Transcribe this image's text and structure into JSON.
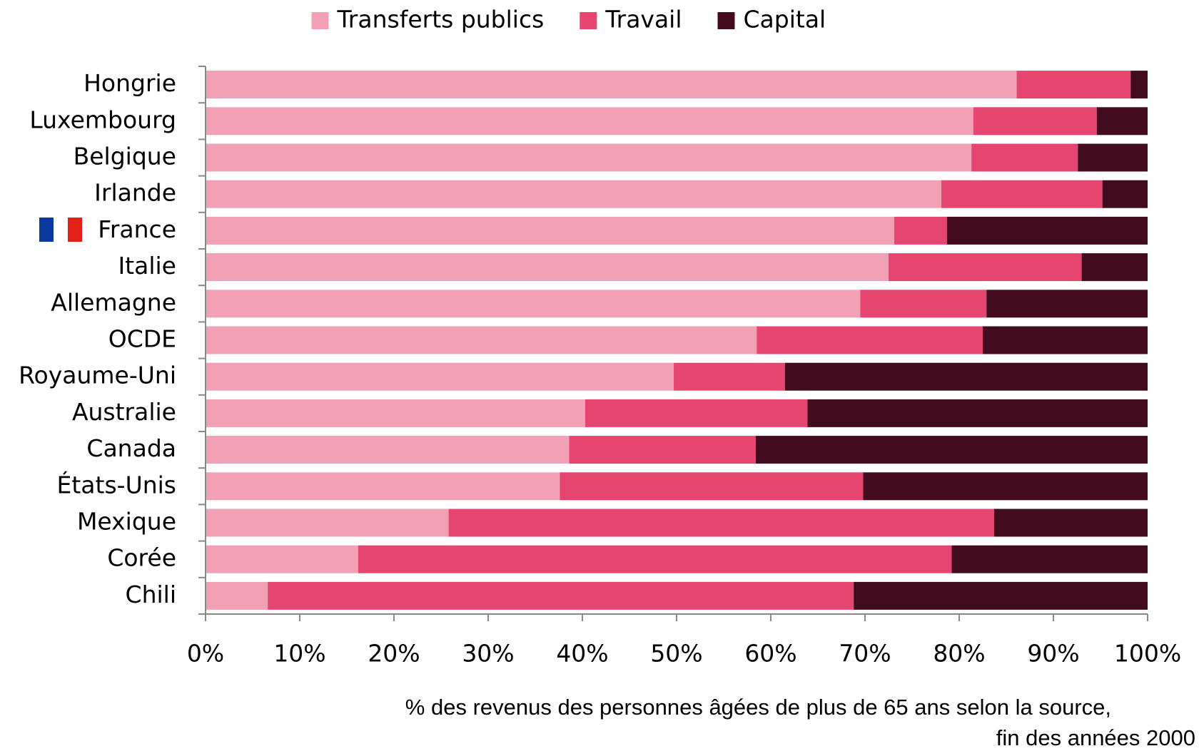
{
  "chart_data": {
    "type": "stacked-barh",
    "categories": [
      "Hongrie",
      "Luxembourg",
      "Belgique",
      "Irlande",
      "France",
      "Italie",
      "Allemagne",
      "OCDE",
      "Royaume-Uni",
      "Australie",
      "Canada",
      "États-Unis",
      "Mexique",
      "Corée",
      "Chili"
    ],
    "series": [
      {
        "name": "Transferts publics",
        "color": "#f2a0b5",
        "values": [
          86.1,
          81.5,
          81.3,
          78.1,
          73.1,
          72.5,
          69.5,
          58.5,
          49.7,
          40.3,
          38.6,
          37.6,
          25.8,
          16.2,
          6.6
        ]
      },
      {
        "name": "Travail",
        "color": "#e64570",
        "values": [
          12.1,
          13.1,
          11.3,
          17.1,
          5.6,
          20.5,
          13.4,
          24.0,
          11.8,
          23.6,
          19.8,
          32.2,
          57.9,
          63.0,
          62.2
        ]
      },
      {
        "name": "Capital",
        "color": "#430c1e",
        "values": [
          1.8,
          5.4,
          7.4,
          4.8,
          21.3,
          7.0,
          17.1,
          17.5,
          38.5,
          36.1,
          41.6,
          30.2,
          16.3,
          20.8,
          31.2
        ]
      }
    ],
    "xlim": [
      0,
      100
    ],
    "xticks": [
      {
        "value": 0,
        "label": "0%"
      },
      {
        "value": 10,
        "label": "10%"
      },
      {
        "value": 20,
        "label": "20%"
      },
      {
        "value": 30,
        "label": "30%"
      },
      {
        "value": 40,
        "label": "40%"
      },
      {
        "value": 50,
        "label": "50%"
      },
      {
        "value": 60,
        "label": "60%"
      },
      {
        "value": 70,
        "label": "70%"
      },
      {
        "value": 80,
        "label": "80%"
      },
      {
        "value": 90,
        "label": "90%"
      },
      {
        "value": 100,
        "label": "100%"
      }
    ],
    "xlabel": [
      "% des revenus des personnes âgées de plus de 65 ans selon la source,",
      "fin des années 2000"
    ],
    "legend": "top"
  }
}
